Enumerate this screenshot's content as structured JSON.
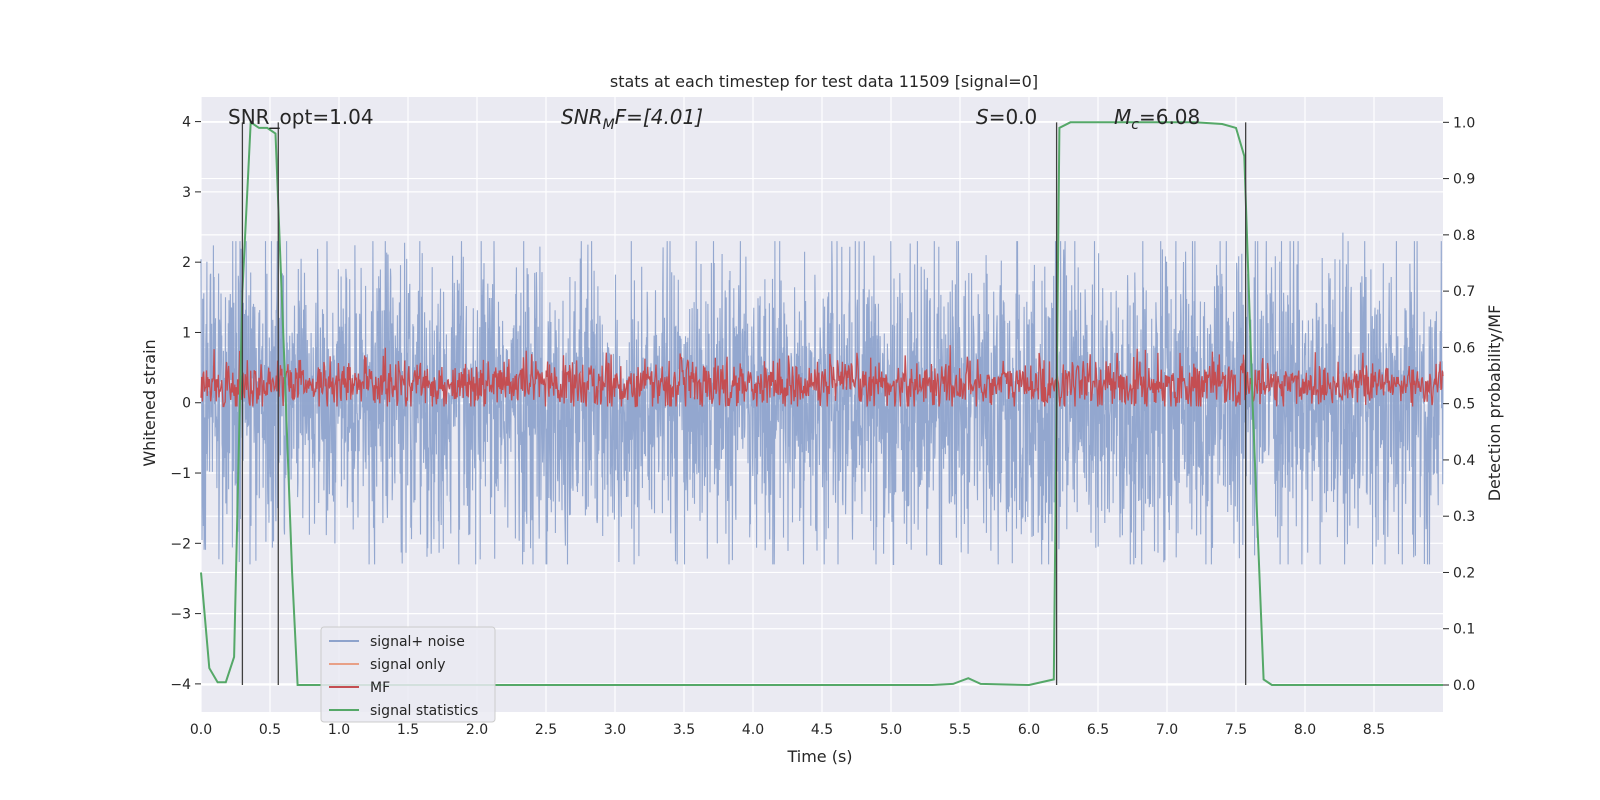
{
  "chart_data": {
    "type": "line",
    "title": "stats at each timestep for test data 11509 [signal=0]",
    "xlabel": "Time (s)",
    "ylabel": "Whitened strain",
    "y2label": "Detection probability/MF",
    "xlim": [
      0.0,
      9.0
    ],
    "ylim": [
      -4.4,
      4.35
    ],
    "y2lim": [
      -0.048,
      1.045
    ],
    "grid": true,
    "legend_position": "lower-left",
    "x_ticks": [
      0.0,
      0.5,
      1.0,
      1.5,
      2.0,
      2.5,
      3.0,
      3.5,
      4.0,
      4.5,
      5.0,
      5.5,
      6.0,
      6.5,
      7.0,
      7.5,
      8.0,
      8.5
    ],
    "x_tick_labels": [
      "0.0",
      "0.5",
      "1.0",
      "1.5",
      "2.0",
      "2.5",
      "3.0",
      "3.5",
      "4.0",
      "4.5",
      "5.0",
      "5.5",
      "6.0",
      "6.5",
      "7.0",
      "7.5",
      "8.0",
      "8.5"
    ],
    "y_ticks": [
      -4,
      -3,
      -2,
      -1,
      0,
      1,
      2,
      3,
      4
    ],
    "y_tick_labels": [
      "−4",
      "−3",
      "−2",
      "−1",
      "0",
      "1",
      "2",
      "3",
      "4"
    ],
    "y2_ticks": [
      0.0,
      0.1,
      0.2,
      0.3,
      0.4,
      0.5,
      0.6,
      0.7,
      0.8,
      0.9,
      1.0
    ],
    "y2_tick_labels": [
      "0.0",
      "0.1",
      "0.2",
      "0.3",
      "0.4",
      "0.5",
      "0.6",
      "0.7",
      "0.8",
      "0.9",
      "1.0"
    ],
    "annotations": {
      "snr_opt": "SNR_opt=1.04",
      "snr_mf_main": "SNR",
      "snr_mf_sub": "M",
      "snr_mf_rest": "F=[4.01]",
      "s_main": "S",
      "s_rest": "=0.0",
      "mc_main": "M",
      "mc_sub": "c",
      "mc_rest": "=6.08"
    },
    "series": [
      {
        "name": "signal+ noise",
        "color": "#8ea3cc",
        "axis": "left",
        "noise_envelope": {
          "typical_abs_max": 2.3,
          "peak_abs_max": 4.0
        }
      },
      {
        "name": "signal only",
        "color": "#e8a087",
        "axis": "left",
        "values": []
      },
      {
        "name": "MF",
        "color": "#c44e52",
        "axis": "right",
        "noise_envelope": {
          "baseline": 0.535,
          "min": 0.495,
          "max": 0.63
        }
      },
      {
        "name": "signal statistics",
        "color": "#55a868",
        "axis": "right",
        "x": [
          0.0,
          0.06,
          0.12,
          0.18,
          0.24,
          0.3,
          0.36,
          0.42,
          0.48,
          0.54,
          0.6,
          0.66,
          0.7,
          0.8,
          1.0,
          5.0,
          5.3,
          5.45,
          5.56,
          5.65,
          6.0,
          6.18,
          6.22,
          6.3,
          6.5,
          7.2,
          7.4,
          7.5,
          7.56,
          7.62,
          7.7,
          7.76,
          8.0,
          9.0
        ],
        "y": [
          0.2,
          0.03,
          0.005,
          0.005,
          0.05,
          0.7,
          1.0,
          0.99,
          0.99,
          0.98,
          0.6,
          0.2,
          0.0,
          0.0,
          0.0,
          0.0,
          0.0,
          0.002,
          0.012,
          0.002,
          0.0,
          0.01,
          0.99,
          1.0,
          1.0,
          1.0,
          0.997,
          0.99,
          0.94,
          0.5,
          0.01,
          0.0,
          0.0,
          0.0
        ]
      }
    ],
    "vertical_markers": [
      0.3,
      0.56,
      6.2,
      7.57
    ]
  }
}
